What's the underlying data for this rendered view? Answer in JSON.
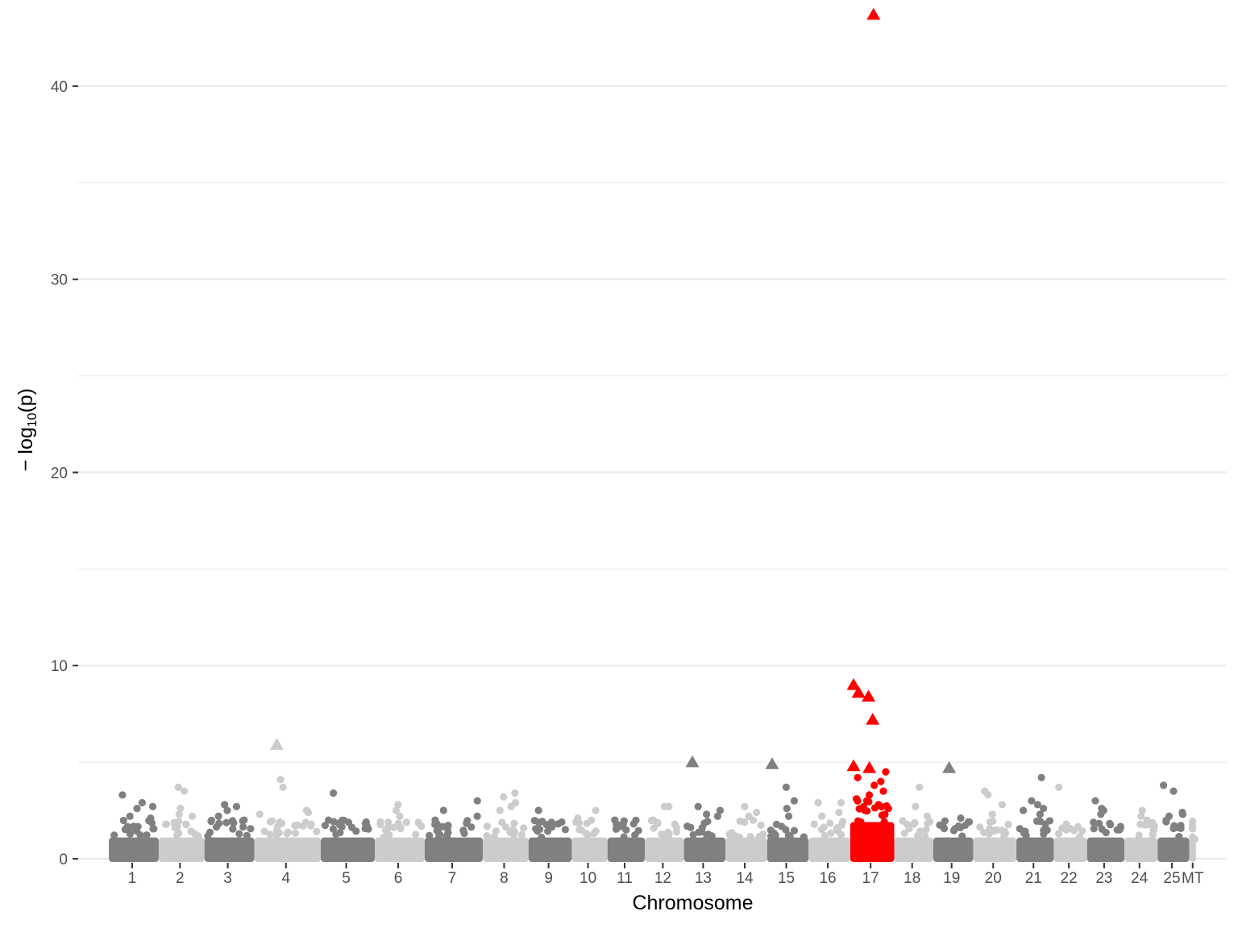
{
  "chart_data": {
    "type": "scatter",
    "subtype": "manhattan",
    "xlabel": "Chromosome",
    "ylabel": {
      "prefix": "− log",
      "subscript": "10",
      "suffix": "(p)"
    },
    "ylim": [
      0,
      44
    ],
    "yticks": [
      0,
      10,
      20,
      30,
      40
    ],
    "minor_gridlines": [
      5,
      15,
      25,
      35
    ],
    "grid": "horizontal",
    "colors": {
      "dark": "#808080",
      "light": "#cccccc",
      "highlight": "#ff0000",
      "grid": "#ebebeb",
      "tick_text": "#4d4d4d"
    },
    "chromosomes": [
      {
        "label": "1",
        "shade": "dark",
        "start": 0,
        "end": 60
      },
      {
        "label": "2",
        "shade": "light",
        "start": 60,
        "end": 115
      },
      {
        "label": "3",
        "shade": "dark",
        "start": 115,
        "end": 175
      },
      {
        "label": "4",
        "shade": "light",
        "start": 175,
        "end": 255
      },
      {
        "label": "5",
        "shade": "dark",
        "start": 255,
        "end": 320
      },
      {
        "label": "6",
        "shade": "light",
        "start": 320,
        "end": 380
      },
      {
        "label": "7",
        "shade": "dark",
        "start": 380,
        "end": 450
      },
      {
        "label": "8",
        "shade": "light",
        "start": 450,
        "end": 505
      },
      {
        "label": "9",
        "shade": "dark",
        "start": 505,
        "end": 557
      },
      {
        "label": "10",
        "shade": "light",
        "start": 557,
        "end": 600
      },
      {
        "label": "11",
        "shade": "dark",
        "start": 600,
        "end": 645
      },
      {
        "label": "12",
        "shade": "light",
        "start": 645,
        "end": 692
      },
      {
        "label": "13",
        "shade": "dark",
        "start": 692,
        "end": 742
      },
      {
        "label": "14",
        "shade": "light",
        "start": 742,
        "end": 792
      },
      {
        "label": "15",
        "shade": "dark",
        "start": 792,
        "end": 842
      },
      {
        "label": "16",
        "shade": "light",
        "start": 842,
        "end": 892
      },
      {
        "label": "17",
        "shade": "red",
        "start": 892,
        "end": 945
      },
      {
        "label": "18",
        "shade": "light",
        "start": 945,
        "end": 992
      },
      {
        "label": "19",
        "shade": "dark",
        "start": 992,
        "end": 1040
      },
      {
        "label": "20",
        "shade": "light",
        "start": 1040,
        "end": 1092
      },
      {
        "label": "21",
        "shade": "dark",
        "start": 1092,
        "end": 1137
      },
      {
        "label": "22",
        "shade": "light",
        "start": 1137,
        "end": 1177
      },
      {
        "label": "23",
        "shade": "dark",
        "start": 1177,
        "end": 1222
      },
      {
        "label": "24",
        "shade": "light",
        "start": 1222,
        "end": 1262
      },
      {
        "label": "25",
        "shade": "dark",
        "start": 1262,
        "end": 1300
      },
      {
        "label": "MT",
        "shade": "light",
        "start": 1300,
        "end": 1308
      }
    ],
    "peaks": [
      {
        "chr": "1",
        "values": [
          3.3,
          2.9,
          2.7,
          2.6,
          2.2,
          2.1
        ]
      },
      {
        "chr": "2",
        "values": [
          3.7,
          3.5,
          2.6,
          2.3,
          2.2
        ]
      },
      {
        "chr": "3",
        "values": [
          2.8,
          2.7,
          2.5,
          2.2,
          2.0
        ]
      },
      {
        "chr": "4",
        "values": [
          4.1,
          3.7,
          2.5,
          2.4,
          2.3
        ]
      },
      {
        "chr": "5",
        "values": [
          3.4,
          2.0,
          1.9
        ]
      },
      {
        "chr": "6",
        "values": [
          2.8,
          2.5,
          2.2
        ]
      },
      {
        "chr": "7",
        "values": [
          3.0,
          2.5,
          2.2,
          2.0
        ]
      },
      {
        "chr": "8",
        "values": [
          3.4,
          3.2,
          2.9,
          2.7,
          2.5
        ]
      },
      {
        "chr": "9",
        "values": [
          2.5,
          1.9
        ]
      },
      {
        "chr": "10",
        "values": [
          2.5,
          2.1
        ]
      },
      {
        "chr": "11",
        "values": [
          2.0,
          1.8
        ]
      },
      {
        "chr": "12",
        "values": [
          2.7,
          2.7,
          2.0
        ]
      },
      {
        "chr": "13",
        "values": [
          2.7,
          2.5,
          2.3,
          2.2
        ]
      },
      {
        "chr": "14",
        "values": [
          2.7,
          2.4,
          2.2
        ]
      },
      {
        "chr": "15",
        "values": [
          3.7,
          3.0,
          2.6,
          2.2
        ]
      },
      {
        "chr": "16",
        "values": [
          2.9,
          2.9,
          2.4,
          2.2
        ]
      },
      {
        "chr": "17",
        "values": [
          4.5,
          4.2,
          4.0,
          3.8,
          3.5,
          3.3,
          3.1,
          3.0,
          2.8,
          2.6,
          2.5,
          2.3
        ]
      },
      {
        "chr": "18",
        "values": [
          3.7,
          2.7,
          2.2
        ]
      },
      {
        "chr": "19",
        "values": [
          2.1,
          1.9
        ]
      },
      {
        "chr": "20",
        "values": [
          3.5,
          3.3,
          2.8,
          2.3
        ]
      },
      {
        "chr": "21",
        "values": [
          4.2,
          3.0,
          2.8,
          2.6,
          2.5,
          2.3
        ]
      },
      {
        "chr": "22",
        "values": [
          3.7,
          1.8
        ]
      },
      {
        "chr": "23",
        "values": [
          3.0,
          2.6,
          2.5,
          2.3
        ]
      },
      {
        "chr": "24",
        "values": [
          2.5,
          2.2
        ]
      },
      {
        "chr": "25",
        "values": [
          3.8,
          3.5,
          2.4,
          2.3,
          2.2
        ]
      },
      {
        "chr": "MT",
        "values": [
          1.0
        ]
      }
    ],
    "significant_snps": [
      {
        "chr": "4",
        "pos": 204,
        "value": 5.9,
        "shade": "light"
      },
      {
        "chr": "13",
        "pos": 704,
        "value": 5.0,
        "shade": "dark"
      },
      {
        "chr": "15",
        "pos": 800,
        "value": 4.9,
        "shade": "dark"
      },
      {
        "chr": "17",
        "pos": 898,
        "value": 9.0,
        "shade": "red"
      },
      {
        "chr": "17",
        "pos": 904,
        "value": 8.6,
        "shade": "red"
      },
      {
        "chr": "17",
        "pos": 916,
        "value": 8.4,
        "shade": "red"
      },
      {
        "chr": "17",
        "pos": 921,
        "value": 7.2,
        "shade": "red"
      },
      {
        "chr": "17",
        "pos": 898,
        "value": 4.8,
        "shade": "red"
      },
      {
        "chr": "17",
        "pos": 917,
        "value": 4.7,
        "shade": "red"
      },
      {
        "chr": "17",
        "pos": 922,
        "value": 43.7,
        "shade": "red"
      },
      {
        "chr": "19",
        "pos": 1013,
        "value": 4.7,
        "shade": "dark"
      }
    ]
  }
}
